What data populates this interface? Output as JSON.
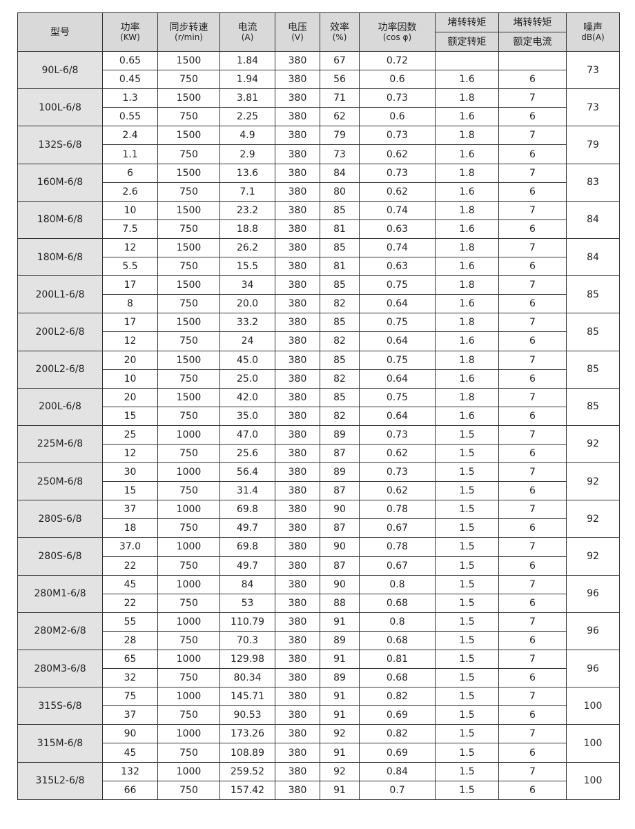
{
  "header": {
    "model": "型号",
    "power": [
      "功率",
      "(KW)"
    ],
    "speed": [
      "同步转速",
      "(r/min)"
    ],
    "current": [
      "电流",
      "(A)"
    ],
    "voltage": [
      "电压",
      "(V)"
    ],
    "efficiency": [
      "效率",
      "(%)"
    ],
    "pf": [
      "功率因数",
      "(cos φ)"
    ],
    "torque_top": "堵转转矩",
    "torque_bottom": "额定转矩",
    "curr_top": "堵转转矩",
    "curr_bottom": "额定电流",
    "noise": [
      "噪声",
      "dB(A)"
    ]
  },
  "rows": [
    {
      "model": "90L-6/8",
      "noise": "73",
      "r": [
        [
          "0.65",
          "1500",
          "1.84",
          "380",
          "67",
          "0.72",
          "",
          ""
        ],
        [
          "0.45",
          "750",
          "1.94",
          "380",
          "56",
          "0.6",
          "1.6",
          "6"
        ]
      ]
    },
    {
      "model": "100L-6/8",
      "noise": "73",
      "r": [
        [
          "1.3",
          "1500",
          "3.81",
          "380",
          "71",
          "0.73",
          "1.8",
          "7"
        ],
        [
          "0.55",
          "750",
          "2.25",
          "380",
          "62",
          "0.6",
          "1.6",
          "6"
        ]
      ]
    },
    {
      "model": "132S-6/8",
      "noise": "79",
      "r": [
        [
          "2.4",
          "1500",
          "4.9",
          "380",
          "79",
          "0.73",
          "1.8",
          "7"
        ],
        [
          "1.1",
          "750",
          "2.9",
          "380",
          "73",
          "0.62",
          "1.6",
          "6"
        ]
      ]
    },
    {
      "model": "160M-6/8",
      "noise": "83",
      "r": [
        [
          "6",
          "1500",
          "13.6",
          "380",
          "84",
          "0.73",
          "1.8",
          "7"
        ],
        [
          "2.6",
          "750",
          "7.1",
          "380",
          "80",
          "0.62",
          "1.6",
          "6"
        ]
      ]
    },
    {
      "model": "180M-6/8",
      "noise": "84",
      "r": [
        [
          "10",
          "1500",
          "23.2",
          "380",
          "85",
          "0.74",
          "1.8",
          "7"
        ],
        [
          "7.5",
          "750",
          "18.8",
          "380",
          "81",
          "0.63",
          "1.6",
          "6"
        ]
      ]
    },
    {
      "model": "180M-6/8",
      "noise": "84",
      "r": [
        [
          "12",
          "1500",
          "26.2",
          "380",
          "85",
          "0.74",
          "1.8",
          "7"
        ],
        [
          "5.5",
          "750",
          "15.5",
          "380",
          "81",
          "0.63",
          "1.6",
          "6"
        ]
      ]
    },
    {
      "model": "200L1-6/8",
      "noise": "85",
      "r": [
        [
          "17",
          "1500",
          "34",
          "380",
          "85",
          "0.75",
          "1.8",
          "7"
        ],
        [
          "8",
          "750",
          "20.0",
          "380",
          "82",
          "0.64",
          "1.6",
          "6"
        ]
      ]
    },
    {
      "model": "200L2-6/8",
      "noise": "85",
      "r": [
        [
          "17",
          "1500",
          "33.2",
          "380",
          "85",
          "0.75",
          "1.8",
          "7"
        ],
        [
          "12",
          "750",
          "24",
          "380",
          "82",
          "0.64",
          "1.6",
          "6"
        ]
      ]
    },
    {
      "model": "200L2-6/8",
      "noise": "85",
      "r": [
        [
          "20",
          "1500",
          "45.0",
          "380",
          "85",
          "0.75",
          "1.8",
          "7"
        ],
        [
          "10",
          "750",
          "25.0",
          "380",
          "82",
          "0.64",
          "1.6",
          "6"
        ]
      ]
    },
    {
      "model": "200L-6/8",
      "noise": "85",
      "r": [
        [
          "20",
          "1500",
          "42.0",
          "380",
          "85",
          "0.75",
          "1.8",
          "7"
        ],
        [
          "15",
          "750",
          "35.0",
          "380",
          "82",
          "0.64",
          "1.6",
          "6"
        ]
      ]
    },
    {
      "model": "225M-6/8",
      "noise": "92",
      "r": [
        [
          "25",
          "1000",
          "47.0",
          "380",
          "89",
          "0.73",
          "1.5",
          "7"
        ],
        [
          "12",
          "750",
          "25.6",
          "380",
          "87",
          "0.62",
          "1.5",
          "6"
        ]
      ]
    },
    {
      "model": "250M-6/8",
      "noise": "92",
      "r": [
        [
          "30",
          "1000",
          "56.4",
          "380",
          "89",
          "0.73",
          "1.5",
          "7"
        ],
        [
          "15",
          "750",
          "31.4",
          "380",
          "87",
          "0.62",
          "1.5",
          "6"
        ]
      ]
    },
    {
      "model": "280S-6/8",
      "noise": "92",
      "r": [
        [
          "37",
          "1000",
          "69.8",
          "380",
          "90",
          "0.78",
          "1.5",
          "7"
        ],
        [
          "18",
          "750",
          "49.7",
          "380",
          "87",
          "0.67",
          "1.5",
          "6"
        ]
      ]
    },
    {
      "model": "280S-6/8",
      "noise": "92",
      "r": [
        [
          "37.0",
          "1000",
          "69.8",
          "380",
          "90",
          "0.78",
          "1.5",
          "7"
        ],
        [
          "22",
          "750",
          "49.7",
          "380",
          "87",
          "0.67",
          "1.5",
          "6"
        ]
      ]
    },
    {
      "model": "280M1-6/8",
      "noise": "96",
      "r": [
        [
          "45",
          "1000",
          "84",
          "380",
          "90",
          "0.8",
          "1.5",
          "7"
        ],
        [
          "22",
          "750",
          "53",
          "380",
          "88",
          "0.68",
          "1.5",
          "6"
        ]
      ]
    },
    {
      "model": "280M2-6/8",
      "noise": "96",
      "r": [
        [
          "55",
          "1000",
          "110.79",
          "380",
          "91",
          "0.8",
          "1.5",
          "7"
        ],
        [
          "28",
          "750",
          "70.3",
          "380",
          "89",
          "0.68",
          "1.5",
          "6"
        ]
      ]
    },
    {
      "model": "280M3-6/8",
      "noise": "96",
      "r": [
        [
          "65",
          "1000",
          "129.98",
          "380",
          "91",
          "0.81",
          "1.5",
          "7"
        ],
        [
          "32",
          "750",
          "80.34",
          "380",
          "89",
          "0.68",
          "1.5",
          "6"
        ]
      ]
    },
    {
      "model": "315S-6/8",
      "noise": "100",
      "r": [
        [
          "75",
          "1000",
          "145.71",
          "380",
          "91",
          "0.82",
          "1.5",
          "7"
        ],
        [
          "37",
          "750",
          "90.53",
          "380",
          "91",
          "0.69",
          "1.5",
          "6"
        ]
      ]
    },
    {
      "model": "315M-6/8",
      "noise": "100",
      "r": [
        [
          "90",
          "1000",
          "173.26",
          "380",
          "92",
          "0.82",
          "1.5",
          "7"
        ],
        [
          "45",
          "750",
          "108.89",
          "380",
          "91",
          "0.69",
          "1.5",
          "6"
        ]
      ]
    },
    {
      "model": "315L2-6/8",
      "noise": "100",
      "r": [
        [
          "132",
          "1000",
          "259.52",
          "380",
          "92",
          "0.84",
          "1.5",
          "7"
        ],
        [
          "66",
          "750",
          "157.42",
          "380",
          "91",
          "0.7",
          "1.5",
          "6"
        ]
      ]
    }
  ]
}
